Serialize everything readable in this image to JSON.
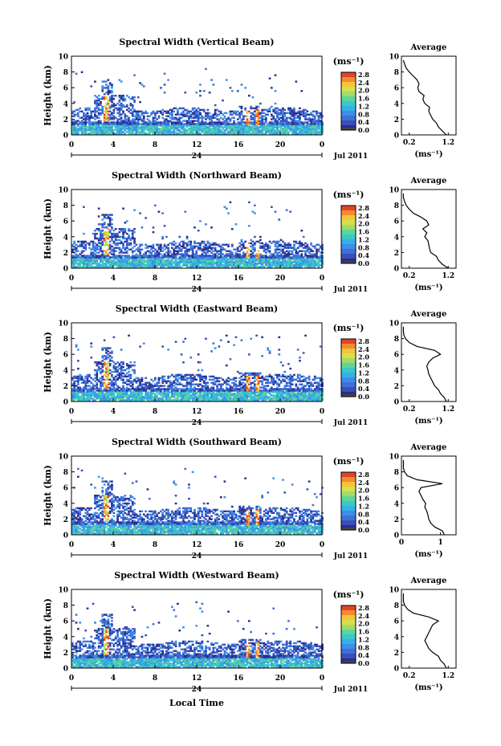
{
  "figure": {
    "x_axis_title": "Local Time",
    "date_label": "Jul 2011",
    "day_label": "24",
    "colorbar_unit": "(ms⁻¹)",
    "colorbar_ticks": [
      "2.8",
      "2.4",
      "2.0",
      "1.6",
      "1.2",
      "0.8",
      "0.4",
      "0.0"
    ],
    "colorbar_colors": [
      "#d73027",
      "#fc8d59",
      "#fee08b",
      "#d9ef8b",
      "#91cf60",
      "#1a9850",
      "#66bd63",
      "#41b6c4",
      "#2c7fb8",
      "#253494",
      "#2a2a8a",
      "#555555"
    ],
    "avg_title": "Average",
    "avg_xlabel": "(ms⁻¹)"
  },
  "chart_data": [
    {
      "type": "heatmap",
      "title": "Spectral Width (Vertical Beam)",
      "ylabel": "Height (km)",
      "x_ticks": [
        "0",
        "4",
        "8",
        "12",
        "16",
        "20",
        "0"
      ],
      "y_ticks": [
        "0",
        "2",
        "4",
        "6",
        "8",
        "10"
      ],
      "xlim": [
        0,
        24
      ],
      "ylim": [
        0,
        10
      ],
      "avg_profile": {
        "xticks": [
          "0.2",
          "1.2"
        ],
        "xlim": [
          0.0,
          1.4
        ],
        "heights": [
          0,
          0.5,
          1,
          1.5,
          2,
          2.5,
          3,
          3.5,
          4,
          4.5,
          5,
          5.5,
          6,
          6.5,
          7,
          7.5,
          8,
          8.5,
          9,
          9.5
        ],
        "values": [
          1.15,
          1.05,
          0.95,
          0.9,
          0.8,
          0.75,
          0.7,
          0.72,
          0.6,
          0.55,
          0.58,
          0.45,
          0.42,
          0.45,
          0.4,
          0.3,
          0.2,
          0.12,
          0.08,
          0.05
        ]
      }
    },
    {
      "type": "heatmap",
      "title": "Spectral Width (Northward Beam)",
      "ylabel": "Height (km)",
      "x_ticks": [
        "0",
        "4",
        "8",
        "12",
        "16",
        "20",
        "0"
      ],
      "y_ticks": [
        "0",
        "2",
        "4",
        "6",
        "8",
        "10"
      ],
      "xlim": [
        0,
        24
      ],
      "ylim": [
        0,
        10
      ],
      "avg_profile": {
        "xticks": [
          "0.2",
          "1.2"
        ],
        "xlim": [
          0.0,
          1.4
        ],
        "heights": [
          0,
          0.5,
          1,
          1.5,
          2,
          2.5,
          3,
          3.5,
          4,
          4.5,
          5,
          5.5,
          6,
          6.5,
          7,
          7.5,
          8,
          8.5,
          9,
          9.5
        ],
        "values": [
          1.2,
          1.05,
          0.95,
          0.9,
          0.75,
          0.72,
          0.7,
          0.68,
          0.6,
          0.65,
          0.55,
          0.7,
          0.65,
          0.5,
          0.3,
          0.2,
          0.12,
          0.08,
          0.05,
          0.05
        ]
      }
    },
    {
      "type": "heatmap",
      "title": "Spectral Width (Eastward Beam)",
      "ylabel": "Height (km)",
      "x_ticks": [
        "0",
        "4",
        "8",
        "12",
        "16",
        "20",
        "0"
      ],
      "y_ticks": [
        "0",
        "2",
        "4",
        "6",
        "8",
        "10"
      ],
      "xlim": [
        0,
        24
      ],
      "ylim": [
        0,
        10
      ],
      "avg_profile": {
        "xticks": [
          "0.2",
          "1.2"
        ],
        "xlim": [
          0.0,
          1.4
        ],
        "heights": [
          0,
          0.5,
          1,
          1.5,
          2,
          2.5,
          3,
          3.5,
          4,
          4.5,
          5,
          5.5,
          6,
          6.5,
          7,
          7.5,
          8,
          8.5,
          9,
          9.5
        ],
        "values": [
          1.15,
          1.1,
          1.0,
          0.95,
          0.85,
          0.8,
          0.75,
          0.7,
          0.68,
          0.65,
          0.7,
          0.8,
          1.0,
          0.85,
          0.4,
          0.2,
          0.1,
          0.06,
          0.05,
          0.05
        ]
      }
    },
    {
      "type": "heatmap",
      "title": "Spectral Width (Southward Beam)",
      "ylabel": "Height (km)",
      "x_ticks": [
        "0",
        "4",
        "8",
        "12",
        "16",
        "20",
        "0"
      ],
      "y_ticks": [
        "0",
        "2",
        "4",
        "6",
        "8",
        "10"
      ],
      "xlim": [
        0,
        24
      ],
      "ylim": [
        0,
        10
      ],
      "avg_profile": {
        "xticks": [
          "0",
          "1"
        ],
        "xlim": [
          0.0,
          1.4
        ],
        "heights": [
          0,
          0.5,
          1,
          1.5,
          2,
          2.5,
          3,
          3.5,
          4,
          4.5,
          5,
          5.5,
          6,
          6.5,
          7,
          7.5,
          8,
          8.5,
          9,
          9.5
        ],
        "values": [
          1.1,
          1.05,
          0.85,
          0.75,
          0.7,
          0.68,
          0.65,
          0.6,
          0.62,
          0.55,
          0.5,
          0.45,
          0.5,
          1.05,
          0.4,
          0.15,
          0.08,
          0.05,
          0.05,
          0.05
        ]
      }
    },
    {
      "type": "heatmap",
      "title": "Spectral Width (Westward Beam)",
      "ylabel": "Height (km)",
      "x_ticks": [
        "0",
        "4",
        "8",
        "12",
        "16",
        "20",
        "0"
      ],
      "y_ticks": [
        "0",
        "2",
        "4",
        "6",
        "8",
        "10"
      ],
      "xlim": [
        0,
        24
      ],
      "ylim": [
        0,
        10
      ],
      "avg_profile": {
        "xticks": [
          "0.2",
          "1.2"
        ],
        "xlim": [
          0.0,
          1.4
        ],
        "heights": [
          0,
          0.5,
          1,
          1.5,
          2,
          2.5,
          3,
          3.5,
          4,
          4.5,
          5,
          5.5,
          6,
          6.5,
          7,
          7.5,
          8,
          8.5,
          9,
          9.5
        ],
        "values": [
          1.15,
          1.1,
          1.0,
          0.95,
          0.8,
          0.7,
          0.65,
          0.6,
          0.65,
          0.7,
          0.75,
          0.8,
          0.95,
          0.7,
          0.3,
          0.15,
          0.08,
          0.05,
          0.05,
          0.05
        ]
      }
    }
  ]
}
